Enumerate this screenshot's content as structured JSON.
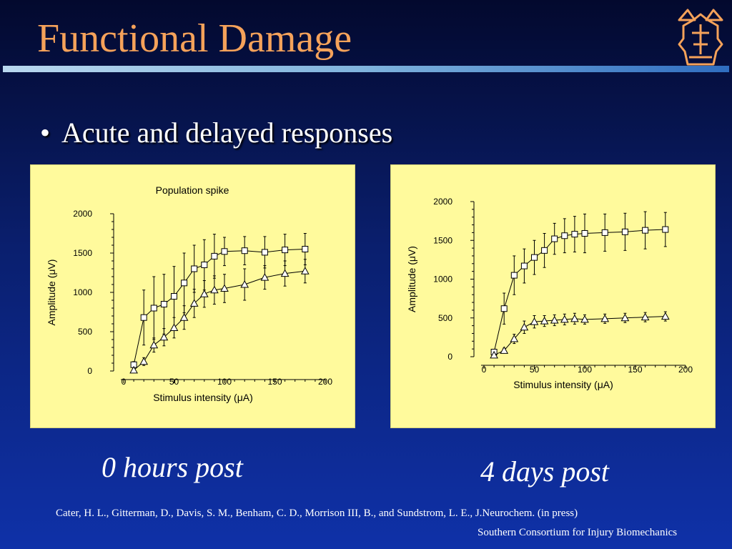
{
  "slide": {
    "title": "Functional Damage",
    "bullet": "Acute and delayed responses",
    "caption_left": "0 hours post",
    "caption_right": "4 days post",
    "citation": "Cater, H. L., Gitterman, D., Davis, S. M., Benham, C. D., Morrison III, B., and Sundstrom, L. E., J.Neurochem. (in press)",
    "footer": "Southern Consortium for Injury Biomechanics",
    "logo_icon": "crown-shield-icon",
    "colors": {
      "title": "#f5a25a",
      "panel": "#fffa9c",
      "logo": "#f5a25a"
    }
  },
  "chart_data": [
    {
      "type": "line",
      "title": "Population spike",
      "xlabel": "Stimulus intensity (μA)",
      "ylabel": "Amplitude (μV)",
      "xlim": [
        0,
        200
      ],
      "ylim": [
        0,
        2000
      ],
      "xticks": [
        "0",
        "50",
        "100",
        "150",
        "200"
      ],
      "yticks": [
        "0",
        "500",
        "1000",
        "1500",
        "2000"
      ],
      "series": [
        {
          "marker": "square",
          "x": [
            10,
            20,
            30,
            40,
            50,
            60,
            70,
            80,
            90,
            100,
            120,
            140,
            160,
            180
          ],
          "y": [
            80,
            680,
            800,
            850,
            950,
            1120,
            1300,
            1350,
            1460,
            1520,
            1530,
            1510,
            1540,
            1550
          ],
          "err": [
            40,
            350,
            400,
            380,
            380,
            380,
            300,
            320,
            280,
            180,
            180,
            200,
            200,
            200
          ]
        },
        {
          "marker": "triangle",
          "x": [
            10,
            20,
            30,
            40,
            50,
            60,
            70,
            80,
            90,
            100,
            120,
            140,
            160,
            180
          ],
          "y": [
            10,
            120,
            330,
            430,
            550,
            680,
            860,
            980,
            1030,
            1050,
            1100,
            1190,
            1240,
            1270
          ],
          "err": [
            10,
            50,
            90,
            110,
            130,
            150,
            180,
            170,
            180,
            180,
            200,
            150,
            160,
            150
          ]
        }
      ]
    },
    {
      "type": "line",
      "title": "",
      "xlabel": "Stimulus intensity (μA)",
      "ylabel": "Amplitude (μV)",
      "xlim": [
        0,
        200
      ],
      "ylim": [
        0,
        2000
      ],
      "xticks": [
        "0",
        "50",
        "100",
        "150",
        "200"
      ],
      "yticks": [
        "0",
        "500",
        "1000",
        "1500",
        "2000"
      ],
      "series": [
        {
          "marker": "square",
          "x": [
            10,
            20,
            30,
            40,
            50,
            60,
            70,
            80,
            90,
            100,
            120,
            140,
            160,
            180
          ],
          "y": [
            60,
            620,
            1050,
            1170,
            1280,
            1370,
            1520,
            1560,
            1580,
            1590,
            1600,
            1610,
            1630,
            1640
          ],
          "err": [
            30,
            200,
            250,
            220,
            220,
            220,
            200,
            220,
            230,
            250,
            240,
            240,
            240,
            220
          ]
        },
        {
          "marker": "triangle",
          "x": [
            10,
            20,
            30,
            40,
            50,
            60,
            70,
            80,
            90,
            100,
            120,
            140,
            160,
            180
          ],
          "y": [
            20,
            80,
            230,
            380,
            450,
            460,
            470,
            480,
            490,
            480,
            490,
            500,
            510,
            520
          ],
          "err": [
            10,
            30,
            60,
            80,
            80,
            70,
            70,
            70,
            70,
            60,
            60,
            60,
            60,
            60
          ]
        }
      ]
    }
  ]
}
